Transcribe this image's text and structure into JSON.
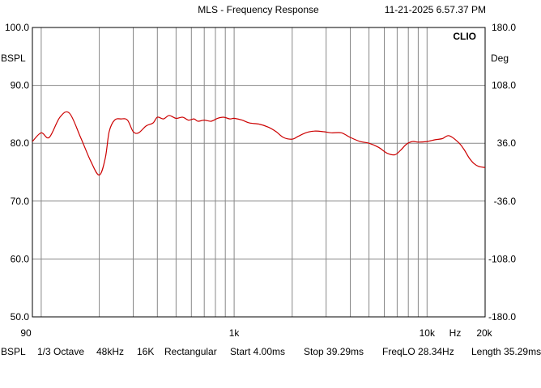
{
  "header": {
    "title": "MLS - Frequency Response",
    "timestamp": "11-21-2025 6.57.37 PM"
  },
  "chart_data": {
    "type": "line",
    "title": "MLS - Frequency Response",
    "brand": "CLIO",
    "x_scale": "log",
    "x_unit": "Hz",
    "xlim": [
      90,
      20000
    ],
    "x_tick_labels": [
      "90",
      "1k",
      "10k",
      "20k"
    ],
    "x_tick_values": [
      90,
      1000,
      10000,
      20000
    ],
    "ylabel_left": "BSPL",
    "ylim_left": [
      50,
      100
    ],
    "y_ticks_left": [
      "100.0",
      "90.0",
      "80.0",
      "70.0",
      "60.0",
      "50.0"
    ],
    "ylabel_right": "Deg",
    "ylim_right": [
      -180,
      180
    ],
    "y_ticks_right": [
      "180.0",
      "108.0",
      "36.0",
      "-36.0",
      "-108.0",
      "-180.0"
    ],
    "grid": true,
    "line_color": "#cc0000",
    "series": [
      {
        "x": [
          90,
          100,
          110,
          125,
          140,
          160,
          180,
          200,
          215,
          225,
          240,
          260,
          280,
          300,
          320,
          350,
          380,
          400,
          430,
          460,
          500,
          540,
          580,
          620,
          650,
          700,
          760,
          820,
          880,
          950,
          1000,
          1100,
          1200,
          1350,
          1500,
          1650,
          1800,
          2000,
          2150,
          2350,
          2600,
          2900,
          3200,
          3600,
          4000,
          4500,
          5000,
          5600,
          6200,
          6800,
          7300,
          7800,
          8400,
          9000,
          10000,
          11000,
          12000,
          13000,
          14500,
          15500,
          16500,
          17500,
          18500,
          20000
        ],
        "y": [
          80.3,
          81.8,
          81.0,
          84.5,
          85.2,
          81.0,
          77.0,
          74.5,
          77.5,
          82.0,
          84.0,
          84.2,
          84.0,
          82.0,
          81.8,
          83.0,
          83.5,
          84.5,
          84.2,
          84.8,
          84.3,
          84.5,
          84.0,
          84.2,
          83.8,
          84.0,
          83.8,
          84.3,
          84.5,
          84.2,
          84.3,
          84.0,
          83.5,
          83.3,
          82.8,
          82.0,
          81.0,
          80.7,
          81.2,
          81.8,
          82.1,
          82.0,
          81.8,
          81.8,
          81.0,
          80.3,
          80.0,
          79.3,
          78.3,
          78.0,
          78.8,
          79.8,
          80.3,
          80.2,
          80.3,
          80.6,
          80.8,
          81.3,
          80.2,
          79.0,
          77.5,
          76.5,
          76.0,
          75.8
        ]
      }
    ]
  },
  "footer": {
    "unit": "BSPL",
    "smoothing": "1/3 Octave",
    "sample_rate": "48kHz",
    "fft_size": "16K",
    "window": "Rectangular",
    "start": "Start 4.00ms",
    "stop": "Stop 39.29ms",
    "freq_lo": "FreqLO 28.34Hz",
    "length": "Length 35.29ms"
  }
}
